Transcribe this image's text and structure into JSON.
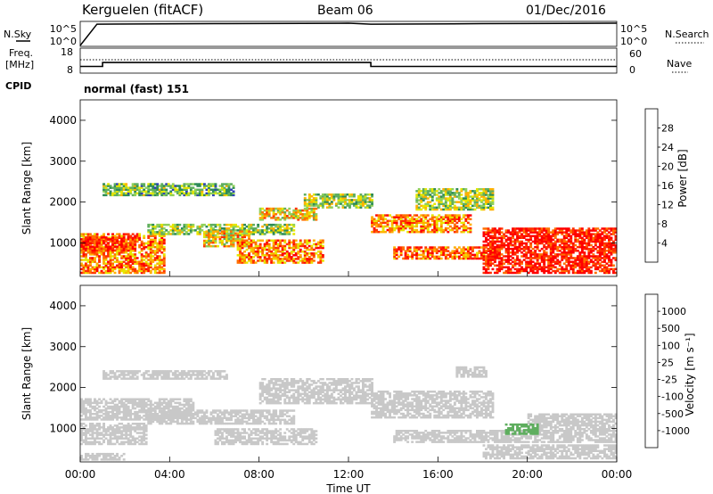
{
  "header": {
    "station": "Kerguelen (fitACF)",
    "beam": "Beam 06",
    "date": "01/Dec/2016"
  },
  "left_labels": {
    "nsky": "N.Sky",
    "freq": "Freq.",
    "freq_unit": "[MHz]",
    "cpid": "CPID"
  },
  "right_labels": {
    "nsearch": "N.Search",
    "nave": "Nave"
  },
  "cpid_text": "normal (fast) 151",
  "nsky_ticks": [
    "10^5",
    "10^0"
  ],
  "nsearch_ticks": [
    "10^5",
    "10^0"
  ],
  "freq_ticks": [
    "18",
    "8"
  ],
  "nave_ticks": [
    "60",
    "0"
  ],
  "colors": {
    "power_scale": [
      "#0000ff",
      "#2f3fb8",
      "#2e8b57",
      "#5fae5f",
      "#8fd05a",
      "#e6e600",
      "#ffb000",
      "#ff7000",
      "#ff3000",
      "#ff0000"
    ],
    "velocity_scale": [
      "#0000ff",
      "#2f3fb8",
      "#2e8b57",
      "#5fae5f",
      "#9bd46a",
      "#c8c8c8",
      "#ffc040",
      "#ff9000",
      "#ff5000",
      "#ff0000"
    ],
    "ground_scatter": "#c8c8c8"
  },
  "chart_data": [
    {
      "type": "line",
      "panel": "nsky",
      "ylim": [
        0,
        5
      ],
      "x": [
        "00:00",
        "00:45",
        "06:00",
        "12:00",
        "13:00",
        "18:00",
        "24:00"
      ],
      "series": [
        {
          "values": [
            0,
            4.6,
            4.7,
            4.8,
            4.6,
            4.7,
            4.8
          ]
        }
      ]
    },
    {
      "type": "line",
      "panel": "frequency",
      "ylim": [
        8,
        18
      ],
      "x": [
        "00:00",
        "01:00",
        "01:00",
        "13:00",
        "13:00",
        "24:00"
      ],
      "series": [
        {
          "values": [
            10.5,
            10.5,
            12.2,
            12.2,
            10.5,
            10.5
          ]
        },
        {
          "values": [
            13.4,
            13.4,
            13.4,
            13.4,
            13.4,
            13.4
          ]
        }
      ]
    },
    {
      "type": "heatmap",
      "panel": "power",
      "xlabel": "",
      "ylabel": "Slant Range [km]",
      "xlim": [
        "00:00",
        "24:00"
      ],
      "ylim": [
        180,
        4500
      ],
      "yticks": [
        "1000",
        "2000",
        "3000",
        "4000"
      ],
      "xticks": [
        "00:00",
        "04:00",
        "08:00",
        "12:00",
        "16:00",
        "20:00",
        "00:00"
      ],
      "colorbar_label": "Power [dB]",
      "colorbar_ticks": [
        "4",
        "8",
        "12",
        "16",
        "20",
        "24",
        "28"
      ],
      "clim": [
        0,
        30
      ],
      "regions": [
        {
          "t0": 0.0,
          "t1": 3.8,
          "r0": 250,
          "r1": 1200,
          "value": 22
        },
        {
          "t0": 0.0,
          "t1": 2.5,
          "r0": 800,
          "r1": 1150,
          "value": 27
        },
        {
          "t0": 1.0,
          "t1": 6.8,
          "r0": 2150,
          "r1": 2450,
          "value": 12
        },
        {
          "t0": 3.0,
          "t1": 9.5,
          "r0": 1200,
          "r1": 1450,
          "value": 13
        },
        {
          "t0": 5.5,
          "t1": 7.5,
          "r0": 900,
          "r1": 1300,
          "value": 18
        },
        {
          "t0": 8.0,
          "t1": 10.5,
          "r0": 1550,
          "r1": 1850,
          "value": 18
        },
        {
          "t0": 10.0,
          "t1": 13.0,
          "r0": 1850,
          "r1": 2200,
          "value": 14
        },
        {
          "t0": 7.0,
          "t1": 10.8,
          "r0": 500,
          "r1": 1050,
          "value": 22
        },
        {
          "t0": 13.0,
          "t1": 17.5,
          "r0": 1250,
          "r1": 1700,
          "value": 22
        },
        {
          "t0": 15.0,
          "t1": 18.5,
          "r0": 1800,
          "r1": 2300,
          "value": 14
        },
        {
          "t0": 14.0,
          "t1": 18.8,
          "r0": 600,
          "r1": 900,
          "value": 24
        },
        {
          "t0": 18.0,
          "t1": 24.0,
          "r0": 250,
          "r1": 1350,
          "value": 28
        }
      ]
    },
    {
      "type": "heatmap",
      "panel": "velocity",
      "xlabel": "Time UT",
      "ylabel": "Slant Range [km]",
      "xlim": [
        "00:00",
        "24:00"
      ],
      "ylim": [
        180,
        4500
      ],
      "yticks": [
        "1000",
        "2000",
        "3000",
        "4000"
      ],
      "xticks": [
        "00:00",
        "04:00",
        "08:00",
        "12:00",
        "16:00",
        "20:00",
        "00:00"
      ],
      "colorbar_label": "Velocity [m s⁻¹]",
      "colorbar_ticks": [
        "1000",
        "500",
        "100",
        "25",
        "-25",
        "-100",
        "-500",
        "-1000"
      ],
      "regions": [
        {
          "t0": 0.0,
          "t1": 5.0,
          "r0": 1200,
          "r1": 1700,
          "value": 0
        },
        {
          "t0": 0.0,
          "t1": 3.0,
          "r0": 600,
          "r1": 1100,
          "value": 0
        },
        {
          "t0": 1.0,
          "t1": 6.5,
          "r0": 2200,
          "r1": 2400,
          "value": 0
        },
        {
          "t0": 3.0,
          "t1": 9.5,
          "r0": 1100,
          "r1": 1450,
          "value": 0
        },
        {
          "t0": 6.0,
          "t1": 10.5,
          "r0": 600,
          "r1": 1000,
          "value": 0
        },
        {
          "t0": 8.0,
          "t1": 13.0,
          "r0": 1600,
          "r1": 2200,
          "value": 0
        },
        {
          "t0": 13.0,
          "t1": 18.5,
          "r0": 1250,
          "r1": 1900,
          "value": 0
        },
        {
          "t0": 14.0,
          "t1": 20.0,
          "r0": 650,
          "r1": 950,
          "value": 0
        },
        {
          "t0": 20.0,
          "t1": 24.0,
          "r0": 650,
          "r1": 1350,
          "value": 0
        },
        {
          "t0": 18.0,
          "t1": 24.0,
          "r0": 250,
          "r1": 600,
          "value": -60
        },
        {
          "t0": 16.8,
          "t1": 18.2,
          "r0": 2250,
          "r1": 2500,
          "value": -60
        },
        {
          "t0": 19.0,
          "t1": 20.5,
          "r0": 850,
          "r1": 1100,
          "value": 60
        },
        {
          "t0": 0.0,
          "t1": 2.0,
          "r0": 220,
          "r1": 380,
          "value": -60
        }
      ]
    }
  ]
}
